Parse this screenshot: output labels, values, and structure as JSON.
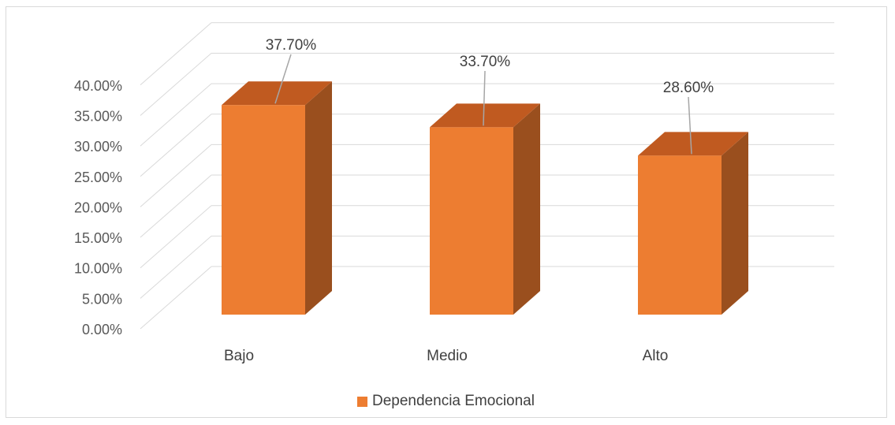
{
  "chart_data": {
    "type": "bar",
    "categories": [
      "Bajo",
      "Medio",
      "Alto"
    ],
    "series": [
      {
        "name": "Dependencia Emocional",
        "values": [
          37.7,
          33.7,
          28.6
        ]
      }
    ],
    "data_labels": [
      "37.70%",
      "33.70%",
      "28.60%"
    ],
    "y_tick_labels": [
      "0.00%",
      "5.00%",
      "10.00%",
      "15.00%",
      "20.00%",
      "25.00%",
      "30.00%",
      "35.00%",
      "40.00%"
    ],
    "ylim": [
      0,
      40
    ],
    "grid": true,
    "legend_position": "bottom",
    "colors": {
      "front": "#ed7d31",
      "side": "#9a4f1e",
      "top": "#c05a20",
      "grid": "#d9d9d9"
    }
  }
}
